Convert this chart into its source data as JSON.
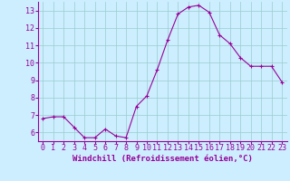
{
  "x": [
    0,
    1,
    2,
    3,
    4,
    5,
    6,
    7,
    8,
    9,
    10,
    11,
    12,
    13,
    14,
    15,
    16,
    17,
    18,
    19,
    20,
    21,
    22,
    23
  ],
  "y": [
    6.8,
    6.9,
    6.9,
    6.3,
    5.7,
    5.7,
    6.2,
    5.8,
    5.7,
    7.5,
    8.1,
    9.6,
    11.3,
    12.8,
    13.2,
    13.3,
    12.9,
    11.6,
    11.1,
    10.3,
    9.8,
    9.8,
    9.8,
    8.9
  ],
  "line_color": "#990099",
  "marker": "+",
  "marker_size": 3,
  "background_color": "#cceeff",
  "grid_color": "#99cccc",
  "xlabel": "Windchill (Refroidissement éolien,°C)",
  "xlabel_color": "#990099",
  "tick_color": "#990099",
  "ylim": [
    5.5,
    13.5
  ],
  "xlim": [
    -0.5,
    23.5
  ],
  "yticks": [
    6,
    7,
    8,
    9,
    10,
    11,
    12,
    13
  ],
  "xticks": [
    0,
    1,
    2,
    3,
    4,
    5,
    6,
    7,
    8,
    9,
    10,
    11,
    12,
    13,
    14,
    15,
    16,
    17,
    18,
    19,
    20,
    21,
    22,
    23
  ],
  "spine_color": "#990099",
  "fig_bg": "#cceeff",
  "tick_fontsize": 6,
  "xlabel_fontsize": 6.5
}
